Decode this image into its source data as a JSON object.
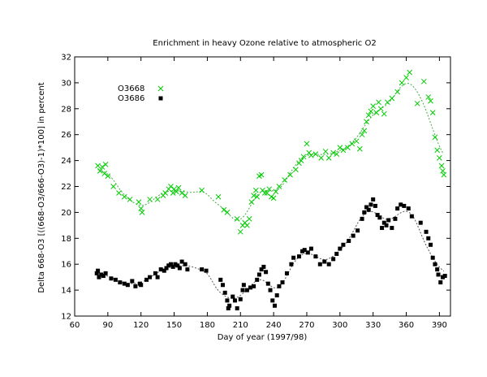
{
  "chart_data": {
    "type": "scatter",
    "title": "Enrichment in heavy Ozone relative to atmospheric O2",
    "xlabel": "Day of year (1997/98)",
    "ylabel": "Delta 668-O3 [((668-O3/666-O3)-1)*100] in percent",
    "xlim": [
      60,
      400
    ],
    "ylim": [
      12,
      32
    ],
    "x_ticks": [
      "60",
      "90",
      "120",
      "150",
      "180",
      "210",
      "240",
      "270",
      "300",
      "330",
      "360",
      "390"
    ],
    "y_ticks": [
      "12",
      "14",
      "16",
      "18",
      "20",
      "22",
      "24",
      "26",
      "28",
      "30",
      "32"
    ],
    "grid": false,
    "legend": "top-left",
    "series": [
      {
        "name": "O3668",
        "color": "#00cc00",
        "marker": "x",
        "fit_color": "#44aa44",
        "points": [
          [
            81,
            23.6
          ],
          [
            83,
            23.2
          ],
          [
            85,
            23.5
          ],
          [
            87,
            23.0
          ],
          [
            88,
            23.7
          ],
          [
            90,
            22.8
          ],
          [
            95,
            22.0
          ],
          [
            100,
            21.5
          ],
          [
            105,
            21.2
          ],
          [
            110,
            21.0
          ],
          [
            118,
            20.8
          ],
          [
            120,
            20.3
          ],
          [
            121,
            20.0
          ],
          [
            128,
            21.0
          ],
          [
            135,
            21.0
          ],
          [
            140,
            21.3
          ],
          [
            142,
            21.5
          ],
          [
            145,
            21.8
          ],
          [
            147,
            22.0
          ],
          [
            149,
            21.5
          ],
          [
            150,
            21.8
          ],
          [
            152,
            21.6
          ],
          [
            154,
            21.9
          ],
          [
            157,
            21.5
          ],
          [
            160,
            21.3
          ],
          [
            175,
            21.7
          ],
          [
            190,
            21.2
          ],
          [
            195,
            20.2
          ],
          [
            198,
            20.0
          ],
          [
            207,
            19.5
          ],
          [
            210,
            18.5
          ],
          [
            212,
            19.0
          ],
          [
            214,
            19.2
          ],
          [
            216,
            19.0
          ],
          [
            218,
            19.5
          ],
          [
            220,
            20.8
          ],
          [
            222,
            21.3
          ],
          [
            224,
            21.7
          ],
          [
            225,
            21.2
          ],
          [
            227,
            22.8
          ],
          [
            229,
            22.9
          ],
          [
            230,
            21.7
          ],
          [
            232,
            21.5
          ],
          [
            234,
            21.5
          ],
          [
            236,
            21.8
          ],
          [
            238,
            21.2
          ],
          [
            240,
            21.1
          ],
          [
            242,
            21.6
          ],
          [
            245,
            22.0
          ],
          [
            250,
            22.5
          ],
          [
            255,
            22.9
          ],
          [
            260,
            23.3
          ],
          [
            263,
            23.8
          ],
          [
            265,
            24.0
          ],
          [
            267,
            24.3
          ],
          [
            270,
            25.3
          ],
          [
            272,
            24.6
          ],
          [
            274,
            24.4
          ],
          [
            278,
            24.5
          ],
          [
            283,
            24.2
          ],
          [
            287,
            24.7
          ],
          [
            290,
            24.2
          ],
          [
            294,
            24.6
          ],
          [
            297,
            24.5
          ],
          [
            300,
            25.0
          ],
          [
            303,
            24.8
          ],
          [
            307,
            25.0
          ],
          [
            311,
            25.3
          ],
          [
            315,
            25.5
          ],
          [
            318,
            24.9
          ],
          [
            320,
            26.0
          ],
          [
            322,
            26.3
          ],
          [
            324,
            27.0
          ],
          [
            326,
            27.5
          ],
          [
            328,
            27.8
          ],
          [
            330,
            28.2
          ],
          [
            333,
            27.7
          ],
          [
            335,
            28.5
          ],
          [
            337,
            28.0
          ],
          [
            340,
            27.6
          ],
          [
            343,
            28.5
          ],
          [
            347,
            28.8
          ],
          [
            352,
            29.3
          ],
          [
            356,
            30.0
          ],
          [
            360,
            30.4
          ],
          [
            363,
            30.8
          ],
          [
            370,
            28.4
          ],
          [
            376,
            30.1
          ],
          [
            380,
            28.9
          ],
          [
            382,
            28.6
          ],
          [
            384,
            27.7
          ],
          [
            386,
            25.8
          ],
          [
            388,
            24.8
          ],
          [
            390,
            24.2
          ],
          [
            392,
            23.6
          ],
          [
            393,
            23.2
          ],
          [
            394,
            22.9
          ]
        ]
      },
      {
        "name": "O3686",
        "color": "#000000",
        "marker": "square",
        "fit_color": "#555555",
        "points": [
          [
            80,
            15.3
          ],
          [
            81,
            15.5
          ],
          [
            82,
            15.0
          ],
          [
            84,
            15.2
          ],
          [
            86,
            15.1
          ],
          [
            88,
            15.3
          ],
          [
            93,
            14.9
          ],
          [
            97,
            14.8
          ],
          [
            101,
            14.6
          ],
          [
            105,
            14.5
          ],
          [
            108,
            14.4
          ],
          [
            112,
            14.7
          ],
          [
            115,
            14.3
          ],
          [
            119,
            14.5
          ],
          [
            120,
            14.4
          ],
          [
            125,
            14.8
          ],
          [
            128,
            15.0
          ],
          [
            133,
            15.3
          ],
          [
            135,
            15.0
          ],
          [
            138,
            15.6
          ],
          [
            141,
            15.5
          ],
          [
            143,
            15.7
          ],
          [
            145,
            15.9
          ],
          [
            147,
            16.0
          ],
          [
            149,
            15.8
          ],
          [
            151,
            16.0
          ],
          [
            153,
            15.9
          ],
          [
            155,
            15.7
          ],
          [
            157,
            16.2
          ],
          [
            160,
            16.0
          ],
          [
            162,
            15.6
          ],
          [
            175,
            15.6
          ],
          [
            179,
            15.5
          ],
          [
            192,
            14.8
          ],
          [
            194,
            14.4
          ],
          [
            196,
            13.8
          ],
          [
            198,
            13.2
          ],
          [
            199,
            12.6
          ],
          [
            200,
            12.8
          ],
          [
            203,
            13.5
          ],
          [
            205,
            13.2
          ],
          [
            207,
            12.6
          ],
          [
            210,
            13.3
          ],
          [
            212,
            14.0
          ],
          [
            213,
            14.4
          ],
          [
            216,
            14.0
          ],
          [
            219,
            14.2
          ],
          [
            222,
            14.3
          ],
          [
            225,
            14.8
          ],
          [
            227,
            15.2
          ],
          [
            229,
            15.6
          ],
          [
            231,
            15.8
          ],
          [
            233,
            15.4
          ],
          [
            235,
            14.5
          ],
          [
            237,
            14.0
          ],
          [
            239,
            13.2
          ],
          [
            241,
            12.8
          ],
          [
            243,
            13.6
          ],
          [
            245,
            14.3
          ],
          [
            248,
            14.6
          ],
          [
            252,
            15.3
          ],
          [
            256,
            16.0
          ],
          [
            258,
            16.5
          ],
          [
            263,
            16.6
          ],
          [
            266,
            17.0
          ],
          [
            268,
            17.1
          ],
          [
            271,
            16.9
          ],
          [
            274,
            17.2
          ],
          [
            278,
            16.6
          ],
          [
            282,
            16.0
          ],
          [
            286,
            16.2
          ],
          [
            290,
            16.0
          ],
          [
            294,
            16.4
          ],
          [
            297,
            16.8
          ],
          [
            300,
            17.2
          ],
          [
            303,
            17.5
          ],
          [
            308,
            17.8
          ],
          [
            312,
            18.2
          ],
          [
            316,
            18.6
          ],
          [
            320,
            19.5
          ],
          [
            322,
            20.0
          ],
          [
            324,
            20.4
          ],
          [
            326,
            20.2
          ],
          [
            328,
            20.6
          ],
          [
            330,
            21.0
          ],
          [
            332,
            20.5
          ],
          [
            334,
            19.8
          ],
          [
            336,
            19.6
          ],
          [
            338,
            18.8
          ],
          [
            340,
            19.2
          ],
          [
            342,
            19.0
          ],
          [
            344,
            19.4
          ],
          [
            347,
            18.8
          ],
          [
            350,
            19.5
          ],
          [
            352,
            20.3
          ],
          [
            355,
            20.6
          ],
          [
            358,
            20.5
          ],
          [
            362,
            20.3
          ],
          [
            365,
            19.7
          ],
          [
            373,
            19.2
          ],
          [
            378,
            18.5
          ],
          [
            380,
            18.0
          ],
          [
            382,
            17.5
          ],
          [
            384,
            16.5
          ],
          [
            386,
            16.0
          ],
          [
            388,
            15.6
          ],
          [
            389,
            15.2
          ],
          [
            391,
            14.6
          ],
          [
            393,
            15.0
          ],
          [
            395,
            15.1
          ]
        ]
      }
    ]
  }
}
